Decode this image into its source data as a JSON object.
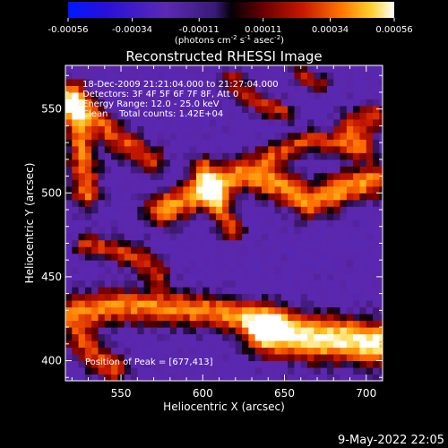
{
  "chart_data": {
    "type": "heatmap",
    "title": "Reconstructed RHESSI Image",
    "xlabel": "Heliocentric X (arcsec)",
    "ylabel": "Heliocentric Y (arcsec)",
    "xlim": [
      516,
      710
    ],
    "ylim": [
      388,
      576
    ],
    "x_ticks": [
      "550",
      "600",
      "650",
      "700"
    ],
    "x_tick_values": [
      550,
      600,
      650,
      700
    ],
    "y_ticks": [
      "400",
      "450",
      "500",
      "550"
    ],
    "y_tick_values": [
      400,
      450,
      500,
      550
    ],
    "colorbar": {
      "ticks": [
        "-0.00056",
        "-0.00034",
        "-0.00011",
        "0.00011",
        "0.00034",
        "0.00056"
      ],
      "tick_values": [
        -0.00056,
        -0.00034,
        -0.00011,
        0.00011,
        0.00034,
        0.00056
      ],
      "range": [
        -0.00056,
        0.00056
      ],
      "units_parts": [
        "(photons cm",
        "-2",
        " s",
        "-1",
        " asec",
        "-2",
        ")"
      ]
    },
    "info_lines": [
      "18-Dec-2009 21:21:04.000 to 21:27:04.000",
      "Detectors: 3F 4F 5F 6F 7F 8F, Att 0",
      "Energy Range: 12.0 - 25.0 keV",
      "Clean    Total counts: 1.42E+04"
    ],
    "peak_label": "Position of Peak = [677,413]",
    "peak": [
      677,
      413
    ],
    "intensity_features": [
      {
        "kind": "ridge",
        "points": [
          [
            575,
            490
          ],
          [
            590,
            496
          ],
          [
            603,
            503
          ],
          [
            612,
            506
          ],
          [
            625,
            512
          ],
          [
            638,
            508
          ],
          [
            652,
            503
          ],
          [
            665,
            495
          ],
          [
            680,
            500
          ],
          [
            692,
            505
          ],
          [
            705,
            508
          ]
        ],
        "width": 7,
        "level": 0.00036
      },
      {
        "kind": "ridge",
        "points": [
          [
            600,
            515
          ],
          [
            606,
            500
          ],
          [
            612,
            488
          ],
          [
            618,
            478
          ]
        ],
        "width": 5,
        "level": 0.00028
      },
      {
        "kind": "ridge",
        "points": [
          [
            640,
            522
          ],
          [
            654,
            527
          ],
          [
            666,
            532
          ],
          [
            678,
            530
          ],
          [
            700,
            527
          ]
        ],
        "width": 5,
        "level": 0.00022
      },
      {
        "kind": "ridge",
        "points": [
          [
            520,
            560
          ],
          [
            524,
            540
          ],
          [
            527,
            518
          ],
          [
            529,
            500
          ]
        ],
        "width": 6,
        "level": 0.0003
      },
      {
        "kind": "ridge",
        "points": [
          [
            520,
            552
          ],
          [
            534,
            545
          ],
          [
            545,
            535
          ],
          [
            556,
            528
          ],
          [
            568,
            520
          ]
        ],
        "width": 6,
        "level": 0.00024
      },
      {
        "kind": "ridge",
        "points": [
          [
            520,
            428
          ],
          [
            540,
            432
          ],
          [
            560,
            433
          ],
          [
            580,
            432
          ],
          [
            600,
            430
          ],
          [
            620,
            427
          ],
          [
            640,
            422
          ]
        ],
        "width": 7,
        "level": 0.00034
      },
      {
        "kind": "ridge",
        "points": [
          [
            640,
            417
          ],
          [
            660,
            415
          ],
          [
            678,
            413
          ],
          [
            695,
            412
          ],
          [
            707,
            410
          ]
        ],
        "width": 9,
        "level": 0.00056
      },
      {
        "kind": "ridge",
        "points": [
          [
            528,
            470
          ],
          [
            545,
            466
          ],
          [
            560,
            462
          ],
          [
            572,
            452
          ]
        ],
        "width": 5,
        "level": 0.0002
      },
      {
        "kind": "ridge",
        "points": [
          [
            526,
            412
          ],
          [
            535,
            402
          ],
          [
            545,
            395
          ]
        ],
        "width": 6,
        "level": 0.00024
      },
      {
        "kind": "ridge",
        "points": [
          [
            618,
            568
          ],
          [
            628,
            558
          ],
          [
            638,
            552
          ],
          [
            650,
            548
          ]
        ],
        "width": 4,
        "level": 0.00018
      },
      {
        "kind": "ridge",
        "points": [
          [
            690,
            540
          ],
          [
            705,
            545
          ]
        ],
        "width": 6,
        "level": 0.00022
      },
      {
        "kind": "ridge",
        "points": [
          [
            660,
            570
          ],
          [
            672,
            565
          ]
        ],
        "width": 4,
        "level": 0.00014
      }
    ]
  },
  "footer": {
    "date": "9-May-2022 22:05"
  }
}
